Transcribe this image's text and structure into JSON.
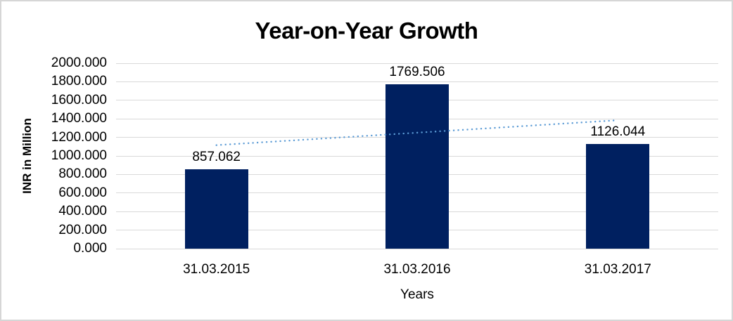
{
  "chart_data": {
    "type": "bar",
    "title": "Year-on-Year Growth",
    "xlabel": "Years",
    "ylabel": "INR in Million",
    "categories": [
      "31.03.2015",
      "31.03.2016",
      "31.03.2017"
    ],
    "values": [
      857.062,
      1769.506,
      1126.044
    ],
    "data_labels": [
      "857.062",
      "1769.506",
      "1126.044"
    ],
    "ylim": [
      0,
      2000
    ],
    "ytick_interval": 200,
    "ytick_labels": [
      "2000.000",
      "1800.000",
      "1600.000",
      "1400.000",
      "1200.000",
      "1000.000",
      "800.000",
      "600.000",
      "400.000",
      "200.000",
      "0.000"
    ],
    "grid": true,
    "legend": "none",
    "trendline": {
      "type": "linear",
      "style": "dotted",
      "start_value": 1116.4,
      "end_value": 1385.4
    },
    "colors": {
      "bar": "#002060",
      "trendline": "#5b9bd5",
      "gridline": "#d9d9d9",
      "text": "#000000",
      "border": "#d6d6d6"
    }
  }
}
